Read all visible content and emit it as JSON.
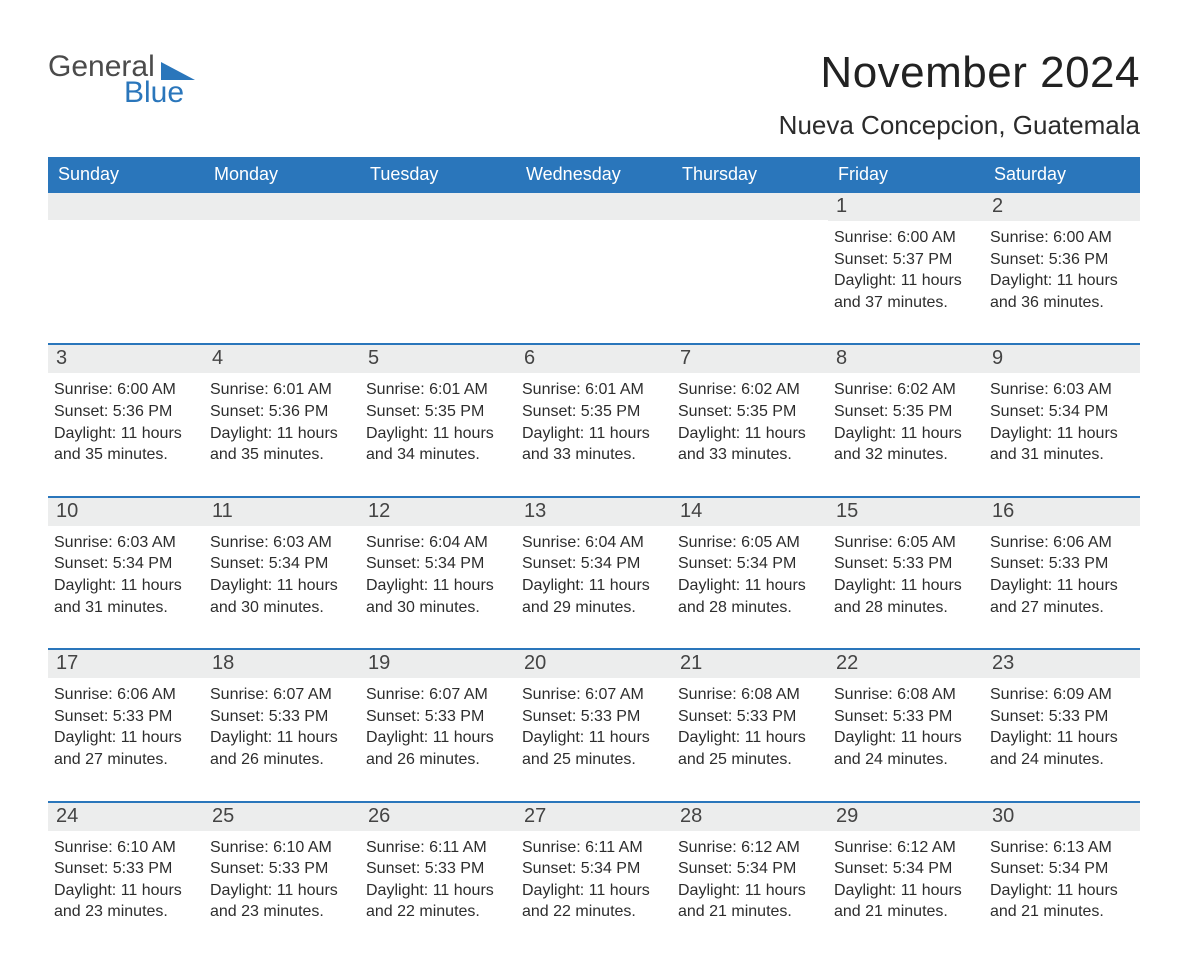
{
  "brand": {
    "line1": "General",
    "line2": "Blue",
    "text_color": "#4b4b4b",
    "accent_color": "#2a76bb"
  },
  "title": "November 2024",
  "location": "Nueva Concepcion, Guatemala",
  "colors": {
    "header_bg": "#2a76bb",
    "header_text": "#ffffff",
    "row_separator": "#2a76bb",
    "daynum_bg": "#eceded",
    "page_bg": "#ffffff",
    "body_text": "#2b2b2b"
  },
  "typography": {
    "title_fontsize_pt": 33,
    "location_fontsize_pt": 20,
    "weekday_fontsize_pt": 14,
    "daynum_fontsize_pt": 15,
    "body_fontsize_pt": 12,
    "font_family": "Arial"
  },
  "calendar": {
    "type": "table",
    "columns": [
      "Sunday",
      "Monday",
      "Tuesday",
      "Wednesday",
      "Thursday",
      "Friday",
      "Saturday"
    ],
    "weeks": [
      [
        {
          "blank": true
        },
        {
          "blank": true
        },
        {
          "blank": true
        },
        {
          "blank": true
        },
        {
          "blank": true
        },
        {
          "day": 1,
          "sunrise": "6:00 AM",
          "sunset": "5:37 PM",
          "daylight": "11 hours and 37 minutes."
        },
        {
          "day": 2,
          "sunrise": "6:00 AM",
          "sunset": "5:36 PM",
          "daylight": "11 hours and 36 minutes."
        }
      ],
      [
        {
          "day": 3,
          "sunrise": "6:00 AM",
          "sunset": "5:36 PM",
          "daylight": "11 hours and 35 minutes."
        },
        {
          "day": 4,
          "sunrise": "6:01 AM",
          "sunset": "5:36 PM",
          "daylight": "11 hours and 35 minutes."
        },
        {
          "day": 5,
          "sunrise": "6:01 AM",
          "sunset": "5:35 PM",
          "daylight": "11 hours and 34 minutes."
        },
        {
          "day": 6,
          "sunrise": "6:01 AM",
          "sunset": "5:35 PM",
          "daylight": "11 hours and 33 minutes."
        },
        {
          "day": 7,
          "sunrise": "6:02 AM",
          "sunset": "5:35 PM",
          "daylight": "11 hours and 33 minutes."
        },
        {
          "day": 8,
          "sunrise": "6:02 AM",
          "sunset": "5:35 PM",
          "daylight": "11 hours and 32 minutes."
        },
        {
          "day": 9,
          "sunrise": "6:03 AM",
          "sunset": "5:34 PM",
          "daylight": "11 hours and 31 minutes."
        }
      ],
      [
        {
          "day": 10,
          "sunrise": "6:03 AM",
          "sunset": "5:34 PM",
          "daylight": "11 hours and 31 minutes."
        },
        {
          "day": 11,
          "sunrise": "6:03 AM",
          "sunset": "5:34 PM",
          "daylight": "11 hours and 30 minutes."
        },
        {
          "day": 12,
          "sunrise": "6:04 AM",
          "sunset": "5:34 PM",
          "daylight": "11 hours and 30 minutes."
        },
        {
          "day": 13,
          "sunrise": "6:04 AM",
          "sunset": "5:34 PM",
          "daylight": "11 hours and 29 minutes."
        },
        {
          "day": 14,
          "sunrise": "6:05 AM",
          "sunset": "5:34 PM",
          "daylight": "11 hours and 28 minutes."
        },
        {
          "day": 15,
          "sunrise": "6:05 AM",
          "sunset": "5:33 PM",
          "daylight": "11 hours and 28 minutes."
        },
        {
          "day": 16,
          "sunrise": "6:06 AM",
          "sunset": "5:33 PM",
          "daylight": "11 hours and 27 minutes."
        }
      ],
      [
        {
          "day": 17,
          "sunrise": "6:06 AM",
          "sunset": "5:33 PM",
          "daylight": "11 hours and 27 minutes."
        },
        {
          "day": 18,
          "sunrise": "6:07 AM",
          "sunset": "5:33 PM",
          "daylight": "11 hours and 26 minutes."
        },
        {
          "day": 19,
          "sunrise": "6:07 AM",
          "sunset": "5:33 PM",
          "daylight": "11 hours and 26 minutes."
        },
        {
          "day": 20,
          "sunrise": "6:07 AM",
          "sunset": "5:33 PM",
          "daylight": "11 hours and 25 minutes."
        },
        {
          "day": 21,
          "sunrise": "6:08 AM",
          "sunset": "5:33 PM",
          "daylight": "11 hours and 25 minutes."
        },
        {
          "day": 22,
          "sunrise": "6:08 AM",
          "sunset": "5:33 PM",
          "daylight": "11 hours and 24 minutes."
        },
        {
          "day": 23,
          "sunrise": "6:09 AM",
          "sunset": "5:33 PM",
          "daylight": "11 hours and 24 minutes."
        }
      ],
      [
        {
          "day": 24,
          "sunrise": "6:10 AM",
          "sunset": "5:33 PM",
          "daylight": "11 hours and 23 minutes."
        },
        {
          "day": 25,
          "sunrise": "6:10 AM",
          "sunset": "5:33 PM",
          "daylight": "11 hours and 23 minutes."
        },
        {
          "day": 26,
          "sunrise": "6:11 AM",
          "sunset": "5:33 PM",
          "daylight": "11 hours and 22 minutes."
        },
        {
          "day": 27,
          "sunrise": "6:11 AM",
          "sunset": "5:34 PM",
          "daylight": "11 hours and 22 minutes."
        },
        {
          "day": 28,
          "sunrise": "6:12 AM",
          "sunset": "5:34 PM",
          "daylight": "11 hours and 21 minutes."
        },
        {
          "day": 29,
          "sunrise": "6:12 AM",
          "sunset": "5:34 PM",
          "daylight": "11 hours and 21 minutes."
        },
        {
          "day": 30,
          "sunrise": "6:13 AM",
          "sunset": "5:34 PM",
          "daylight": "11 hours and 21 minutes."
        }
      ]
    ],
    "labels": {
      "sunrise": "Sunrise:",
      "sunset": "Sunset:",
      "daylight": "Daylight:"
    }
  }
}
